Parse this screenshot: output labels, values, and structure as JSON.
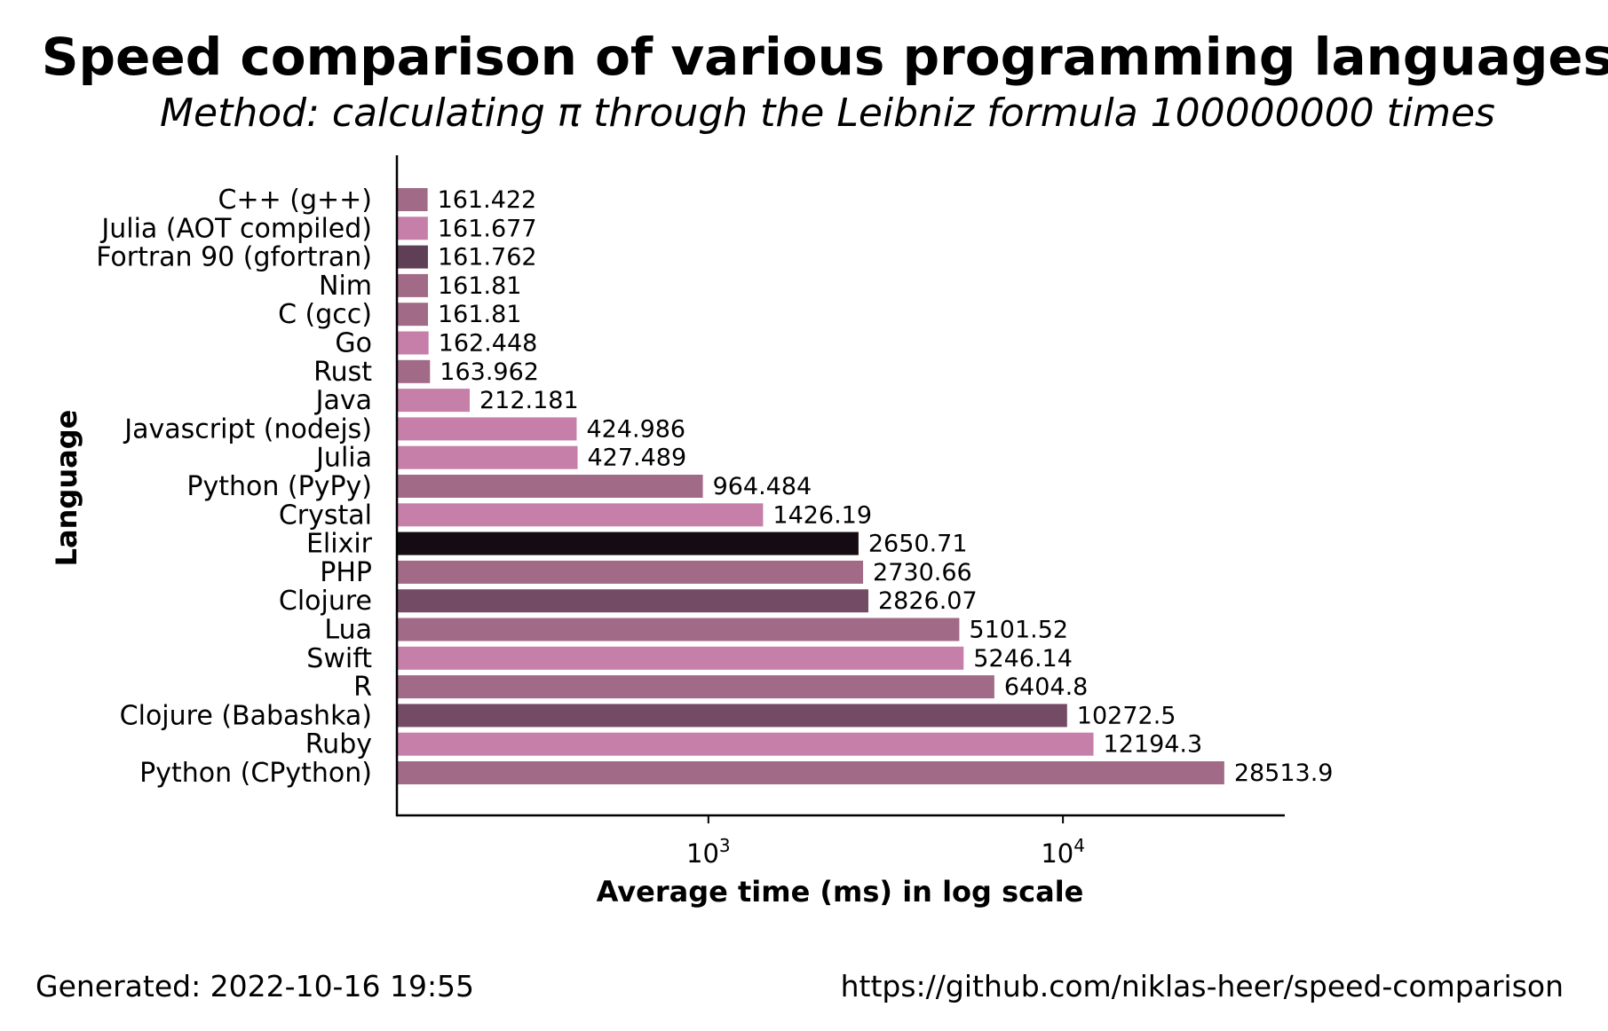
{
  "footer": {
    "generated": "Generated: 2022-10-16 19:55",
    "url": "https://github.com/niklas-heer/speed-comparison"
  },
  "chart_data": {
    "type": "bar",
    "orientation": "horizontal",
    "title": "Speed comparison of various programming languages",
    "subtitle": "Method: calculating π through the Leibniz formula 100000000 times",
    "xlabel": "Average time (ms) in log scale",
    "ylabel": "Language",
    "xscale": "log",
    "xlim": [
      133,
      42000
    ],
    "x_ticks": [
      {
        "value": 1000,
        "base": "10",
        "exp": "3"
      },
      {
        "value": 10000,
        "base": "10",
        "exp": "4"
      }
    ],
    "grid": false,
    "legend": "none",
    "categories": [
      "C++ (g++)",
      "Julia (AOT compiled)",
      "Fortran 90 (gfortran)",
      "Nim",
      "C (gcc)",
      "Go",
      "Rust",
      "Java",
      "Javascript (nodejs)",
      "Julia",
      "Python (PyPy)",
      "Crystal",
      "Elixir",
      "PHP",
      "Clojure",
      "Lua",
      "Swift",
      "R",
      "Clojure (Babashka)",
      "Ruby",
      "Python (CPython)"
    ],
    "values": [
      161.422,
      161.677,
      161.762,
      161.81,
      161.81,
      162.448,
      163.962,
      212.181,
      424.986,
      427.489,
      964.484,
      1426.19,
      2650.71,
      2730.66,
      2826.07,
      5101.52,
      5246.14,
      6404.8,
      10272.5,
      12194.3,
      28513.9
    ],
    "value_labels": [
      "161.422",
      "161.677",
      "161.762",
      "161.81",
      "161.81",
      "162.448",
      "163.962",
      "212.181",
      "424.986",
      "427.489",
      "964.484",
      "1426.19",
      "2650.71",
      "2730.66",
      "2826.07",
      "5101.52",
      "5246.14",
      "6404.8",
      "10272.5",
      "12194.3",
      "28513.9"
    ],
    "colors": [
      "#a16a87",
      "#c57fa9",
      "#5e3f56",
      "#a16a87",
      "#a16a87",
      "#c57fa9",
      "#a16a87",
      "#c57fa9",
      "#c57fa9",
      "#c57fa9",
      "#a16a87",
      "#c57fa9",
      "#140c12",
      "#a16a87",
      "#744b65",
      "#a16a87",
      "#c57fa9",
      "#a16a87",
      "#744b65",
      "#c57fa9",
      "#a16a87"
    ]
  }
}
